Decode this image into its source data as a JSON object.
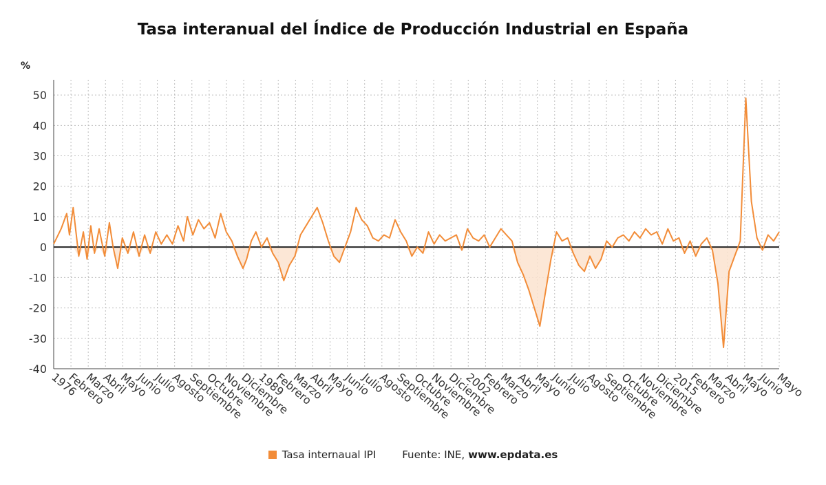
{
  "chart_data": {
    "type": "line",
    "title": "Tasa interanual del Índice de Producción Industrial en España",
    "ylabel": "%",
    "xlabel": "",
    "ylim": [
      -40,
      55
    ],
    "yticks": [
      -40,
      -30,
      -20,
      -10,
      0,
      10,
      20,
      30,
      40,
      50
    ],
    "grid": true,
    "legend_position": "bottom",
    "x_tick_labels": [
      "1976",
      "Febrero",
      "Marzo",
      "Abril",
      "Mayo",
      "Junio",
      "Julio",
      "Agosto",
      "Septiembre",
      "Octubre",
      "Noviembre",
      "Diciembre",
      "1989",
      "Febrero",
      "Marzo",
      "Abril",
      "Mayo",
      "Junio",
      "Julio",
      "Agosto",
      "Septiembre",
      "Octubre",
      "Noviembre",
      "Diciembre",
      "2002",
      "Febrero",
      "Marzo",
      "Abril",
      "Mayo",
      "Junio",
      "Julio",
      "Agosto",
      "Septiembre",
      "Octubre",
      "Noviembre",
      "Diciembre",
      "2015",
      "Febrero",
      "Marzo",
      "Abril",
      "Mayo",
      "Junio",
      "Mayo"
    ],
    "series": [
      {
        "name": "Tasa internaual IPI",
        "color": "#f28c38",
        "points": [
          [
            "1976-01",
            1
          ],
          [
            "1976-09",
            6
          ],
          [
            "1977-03",
            11
          ],
          [
            "1977-06",
            4
          ],
          [
            "1977-10",
            13
          ],
          [
            "1978-04",
            -3
          ],
          [
            "1978-09",
            5
          ],
          [
            "1979-01",
            -4
          ],
          [
            "1979-05",
            7
          ],
          [
            "1979-09",
            -2
          ],
          [
            "1980-02",
            6
          ],
          [
            "1980-08",
            -3
          ],
          [
            "1981-01",
            8
          ],
          [
            "1981-05",
            0
          ],
          [
            "1981-10",
            -7
          ],
          [
            "1982-03",
            3
          ],
          [
            "1982-09",
            -2
          ],
          [
            "1983-03",
            5
          ],
          [
            "1983-09",
            -3
          ],
          [
            "1984-03",
            4
          ],
          [
            "1984-09",
            -2
          ],
          [
            "1985-03",
            5
          ],
          [
            "1985-09",
            1
          ],
          [
            "1986-03",
            4
          ],
          [
            "1986-09",
            1
          ],
          [
            "1987-03",
            7
          ],
          [
            "1987-09",
            2
          ],
          [
            "1988-01",
            10
          ],
          [
            "1988-07",
            4
          ],
          [
            "1989-01",
            9
          ],
          [
            "1989-07",
            6
          ],
          [
            "1990-01",
            8
          ],
          [
            "1990-07",
            3
          ],
          [
            "1991-01",
            11
          ],
          [
            "1991-07",
            5
          ],
          [
            "1992-01",
            2
          ],
          [
            "1992-07",
            -3
          ],
          [
            "1993-01",
            -7
          ],
          [
            "1993-05",
            -4
          ],
          [
            "1993-10",
            2
          ],
          [
            "1994-03",
            5
          ],
          [
            "1994-09",
            0
          ],
          [
            "1995-03",
            3
          ],
          [
            "1995-09",
            -2
          ],
          [
            "1996-03",
            -5
          ],
          [
            "1996-09",
            -11
          ],
          [
            "1997-03",
            -6
          ],
          [
            "1997-09",
            -3
          ],
          [
            "1998-03",
            4
          ],
          [
            "1998-09",
            7
          ],
          [
            "1999-03",
            10
          ],
          [
            "1999-09",
            13
          ],
          [
            "2000-03",
            8
          ],
          [
            "2000-09",
            2
          ],
          [
            "2001-03",
            -3
          ],
          [
            "2001-09",
            -5
          ],
          [
            "2002-03",
            0
          ],
          [
            "2002-09",
            5
          ],
          [
            "2003-03",
            13
          ],
          [
            "2003-09",
            9
          ],
          [
            "2004-03",
            7
          ],
          [
            "2004-09",
            3
          ],
          [
            "2005-03",
            2
          ],
          [
            "2005-09",
            4
          ],
          [
            "2006-03",
            3
          ],
          [
            "2006-09",
            9
          ],
          [
            "2007-03",
            5
          ],
          [
            "2007-09",
            2
          ],
          [
            "2008-03",
            -3
          ],
          [
            "2008-09",
            0
          ],
          [
            "2009-03",
            -2
          ],
          [
            "2009-09",
            5
          ],
          [
            "2010-03",
            1
          ],
          [
            "2010-09",
            4
          ],
          [
            "2011-03",
            2
          ],
          [
            "2011-09",
            3
          ],
          [
            "2012-03",
            4
          ],
          [
            "2012-09",
            -1
          ],
          [
            "2013-03",
            6
          ],
          [
            "2013-09",
            3
          ],
          [
            "2014-03",
            2
          ],
          [
            "2014-09",
            4
          ],
          [
            "2015-03",
            0
          ],
          [
            "2015-09",
            3
          ],
          [
            "2016-03",
            6
          ],
          [
            "2016-09",
            4
          ],
          [
            "2017-03",
            2
          ],
          [
            "2017-09",
            -5
          ],
          [
            "2018-03",
            -9
          ],
          [
            "2018-09",
            -14
          ],
          [
            "2019-03",
            -20
          ],
          [
            "2019-09",
            -26
          ],
          [
            "2020-03",
            -15
          ],
          [
            "2020-09",
            -4
          ],
          [
            "2021-03",
            5
          ],
          [
            "2021-09",
            2
          ],
          [
            "2022-03",
            3
          ],
          [
            "2022-09",
            -2
          ],
          [
            "2023-03",
            -6
          ],
          [
            "2023-09",
            -8
          ],
          [
            "2024-03",
            -3
          ],
          [
            "2024-09",
            -7
          ],
          [
            "2025-03",
            -4
          ],
          [
            "2025-09",
            2
          ],
          [
            "2026-03",
            0
          ],
          [
            "2026-09",
            3
          ],
          [
            "2027-03",
            4
          ],
          [
            "2027-09",
            2
          ],
          [
            "2028-03",
            5
          ],
          [
            "2028-09",
            3
          ],
          [
            "2029-03",
            6
          ],
          [
            "2029-09",
            4
          ],
          [
            "2030-03",
            5
          ],
          [
            "2030-09",
            1
          ],
          [
            "2031-03",
            6
          ],
          [
            "2031-09",
            2
          ],
          [
            "2032-03",
            3
          ],
          [
            "2032-09",
            -2
          ],
          [
            "2033-03",
            2
          ],
          [
            "2033-09",
            -3
          ],
          [
            "2034-03",
            1
          ],
          [
            "2034-09",
            3
          ],
          [
            "2035-03",
            -1
          ],
          [
            "2035-09",
            -12
          ],
          [
            "2036-03",
            -33
          ],
          [
            "2036-09",
            -8
          ],
          [
            "2037-03",
            -3
          ],
          [
            "2037-09",
            2
          ],
          [
            "2038-03",
            49
          ],
          [
            "2038-09",
            15
          ],
          [
            "2039-03",
            3
          ],
          [
            "2039-09",
            -1
          ],
          [
            "2040-03",
            4
          ],
          [
            "2040-09",
            2
          ],
          [
            "2041-03",
            5
          ]
        ]
      }
    ]
  },
  "legend": {
    "items": [
      {
        "label": "Tasa internaual IPI",
        "color": "#f28c38"
      }
    ]
  },
  "source": {
    "prefix": "Fuente: INE,",
    "site": "www.epdata.es"
  }
}
